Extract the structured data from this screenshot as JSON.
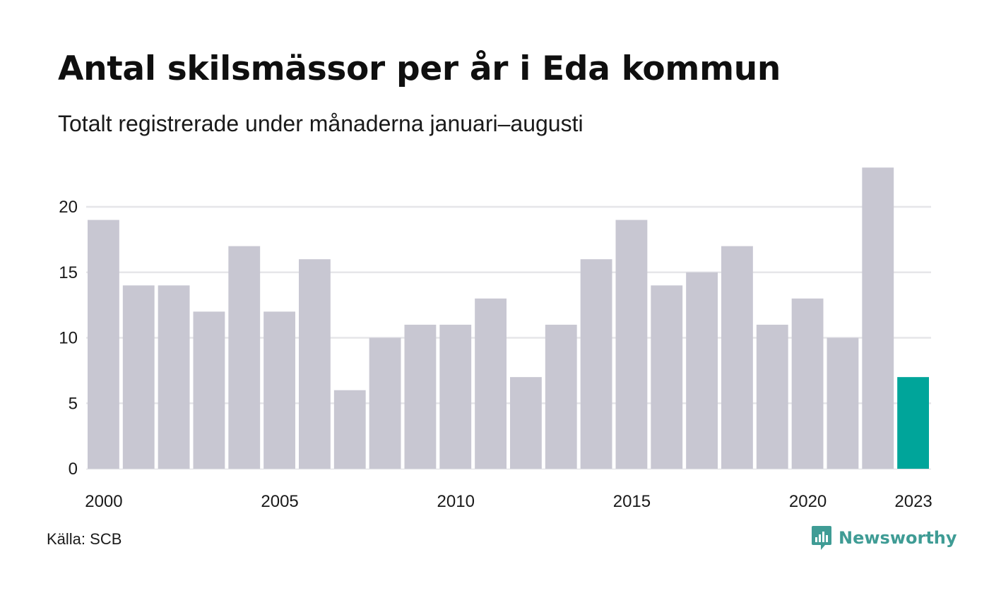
{
  "header": {
    "title": "Antal skilsmässor per år i Eda kommun",
    "subtitle": "Totalt registrerade under månaderna januari–augusti"
  },
  "footer": {
    "source": "Källa: SCB",
    "brand": "Newsworthy"
  },
  "colors": {
    "bar": "#c8c7d2",
    "highlight": "#00a59a",
    "grid": "#e6e6e9",
    "text": "#1a1a1a",
    "brand": "#3f9c95"
  },
  "chart_data": {
    "type": "bar",
    "categories": [
      "2000",
      "2001",
      "2002",
      "2003",
      "2004",
      "2005",
      "2006",
      "2007",
      "2008",
      "2009",
      "2010",
      "2011",
      "2012",
      "2013",
      "2014",
      "2015",
      "2016",
      "2017",
      "2018",
      "2019",
      "2020",
      "2021",
      "2022",
      "2023"
    ],
    "values": [
      19,
      14,
      14,
      12,
      17,
      12,
      16,
      6,
      10,
      11,
      11,
      13,
      7,
      11,
      16,
      19,
      14,
      15,
      17,
      11,
      13,
      10,
      23,
      7
    ],
    "highlight_index": 23,
    "x_tick_labels": [
      "2000",
      "2005",
      "2010",
      "2015",
      "2020",
      "2023"
    ],
    "y_ticks": [
      0,
      5,
      10,
      15,
      20
    ],
    "ylim": [
      0,
      23
    ],
    "grid": true,
    "title": "Antal skilsmässor per år i Eda kommun",
    "subtitle": "Totalt registrerade under månaderna januari–augusti",
    "xlabel": "",
    "ylabel": ""
  }
}
